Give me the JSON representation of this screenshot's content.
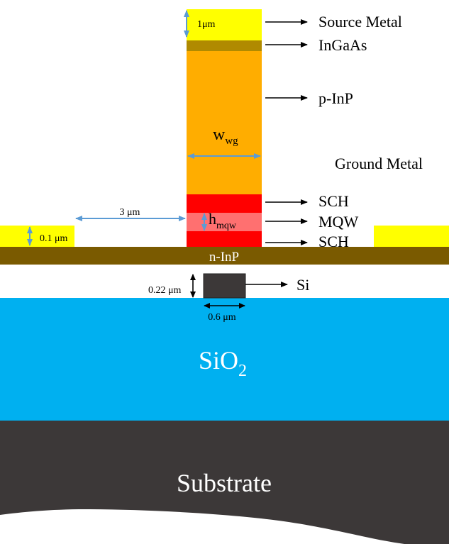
{
  "colors": {
    "source_metal": "#ffff00",
    "ground_metal": "#ffff00",
    "ingaas": "#b08a00",
    "p_inp": "#ffad00",
    "sch": "#ff0000",
    "mqw": "#ff7070",
    "n_inp": "#7a5a00",
    "si": "#3c3838",
    "sio2": "#00b0f0",
    "substrate": "#3c3838",
    "dimension_arrow": "#5b9bd5",
    "pointer_arrow": "#000000"
  },
  "layers": {
    "source_metal": "Source Metal",
    "ingaas": "InGaAs",
    "p_inp": "p-InP",
    "ground_metal": "Ground Metal",
    "sch_top": "SCH",
    "mqw": "MQW",
    "sch_bottom": "SCH",
    "n_inp": "n-InP",
    "si": "Si",
    "sio2_base": "SiO",
    "sio2_sub": "2",
    "substrate": "Substrate"
  },
  "dimensions": {
    "source_metal_thickness": "1μm",
    "waveguide_width_base": "w",
    "waveguide_width_sub": "wg",
    "gap": "3 μm",
    "mqw_height_base": "h",
    "mqw_height_sub": "mqw",
    "ground_metal_thickness": "0.1 μm",
    "si_height": "0.22 μm",
    "si_width": "0.6 μm"
  }
}
